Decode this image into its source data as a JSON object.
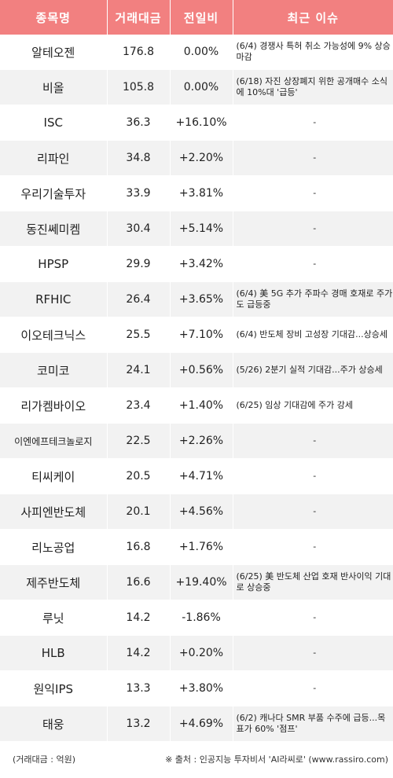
{
  "headers": {
    "name": "종목명",
    "volume": "거래대금",
    "change": "전일비",
    "issue": "최근 이슈"
  },
  "rows": [
    {
      "name": "알테오젠",
      "volume": "176.8",
      "change": "0.00%",
      "issue": "(6/4) 경쟁사 특허 취소 가능성에 9% 상승 마감"
    },
    {
      "name": "비올",
      "volume": "105.8",
      "change": "0.00%",
      "issue": "(6/18) 자진 상장폐지 위한 공개매수 소식에 10%대 '급등'"
    },
    {
      "name": "ISC",
      "volume": "36.3",
      "change": "+16.10%",
      "issue": "-"
    },
    {
      "name": "리파인",
      "volume": "34.8",
      "change": "+2.20%",
      "issue": "-"
    },
    {
      "name": "우리기술투자",
      "volume": "33.9",
      "change": "+3.81%",
      "issue": "-"
    },
    {
      "name": "동진쎄미켐",
      "volume": "30.4",
      "change": "+5.14%",
      "issue": "-"
    },
    {
      "name": "HPSP",
      "volume": "29.9",
      "change": "+3.42%",
      "issue": "-"
    },
    {
      "name": "RFHIC",
      "volume": "26.4",
      "change": "+3.65%",
      "issue": "(6/4) 美 5G 추가 주파수 경매 호재로 주가도 급등중"
    },
    {
      "name": "이오테크닉스",
      "volume": "25.5",
      "change": "+7.10%",
      "issue": "(6/4) 반도체 장비 고성장 기대감...상승세"
    },
    {
      "name": "코미코",
      "volume": "24.1",
      "change": "+0.56%",
      "issue": "(5/26) 2분기 실적 기대감...주가 상승세"
    },
    {
      "name": "리가켐바이오",
      "volume": "23.4",
      "change": "+1.40%",
      "issue": "(6/25) 임상 기대감에 주가 강세"
    },
    {
      "name": "이엔에프테크놀로지",
      "volume": "22.5",
      "change": "+2.26%",
      "issue": "-"
    },
    {
      "name": "티씨케이",
      "volume": "20.5",
      "change": "+4.71%",
      "issue": "-"
    },
    {
      "name": "사피엔반도체",
      "volume": "20.1",
      "change": "+4.56%",
      "issue": "-"
    },
    {
      "name": "리노공업",
      "volume": "16.8",
      "change": "+1.76%",
      "issue": "-"
    },
    {
      "name": "제주반도체",
      "volume": "16.6",
      "change": "+19.40%",
      "issue": "(6/25) 美 반도체 산업 호재 반사이익 기대로 상승중"
    },
    {
      "name": "루닛",
      "volume": "14.2",
      "change": "-1.86%",
      "issue": "-"
    },
    {
      "name": "HLB",
      "volume": "14.2",
      "change": "+0.20%",
      "issue": "-"
    },
    {
      "name": "원익IPS",
      "volume": "13.3",
      "change": "+3.80%",
      "issue": "-"
    },
    {
      "name": "태웅",
      "volume": "13.2",
      "change": "+4.69%",
      "issue": "(6/2) 캐나다 SMR 부품 수주에 급등...목표가 60% '점프'"
    }
  ],
  "footer": {
    "unit_note": "(거래대금 : 억원)",
    "source_note": "※ 출처 : 인공지능 투자비서 'AI라씨로' (www.rassiro.com)"
  },
  "colors": {
    "header_bg": "#f28080",
    "up": "#e02020",
    "down": "#2222aa",
    "row_alt": "#f2f2f2"
  }
}
